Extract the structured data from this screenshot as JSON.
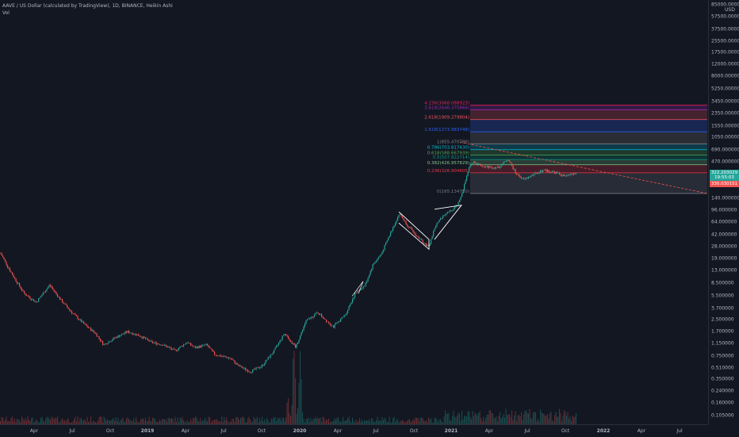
{
  "legend": {
    "symbol": "AAVE / US Dollar (calculated by TradingView), 1D, BINANCE, Heikin Ashi",
    "volume": "Vol"
  },
  "price_axis": {
    "currency": "USD",
    "ticks": [
      {
        "label": "85000.000000",
        "v": 85000
      },
      {
        "label": "57500.000000",
        "v": 57500
      },
      {
        "label": "37500.000000",
        "v": 37500
      },
      {
        "label": "25500.000000",
        "v": 25500
      },
      {
        "label": "17500.000000",
        "v": 17500
      },
      {
        "label": "12000.000000",
        "v": 12000
      },
      {
        "label": "8000.000000",
        "v": 8000
      },
      {
        "label": "5250.000000",
        "v": 5250
      },
      {
        "label": "3450.000000",
        "v": 3450
      },
      {
        "label": "2350.000000",
        "v": 2350
      },
      {
        "label": "1550.000000",
        "v": 1550
      },
      {
        "label": "1050.000000",
        "v": 1050
      },
      {
        "label": "690.000000",
        "v": 690
      },
      {
        "label": "470.000000",
        "v": 470
      },
      {
        "label": "140.000000",
        "v": 140
      },
      {
        "label": "96.000000",
        "v": 96
      },
      {
        "label": "64.000000",
        "v": 64
      },
      {
        "label": "42.000000",
        "v": 42
      },
      {
        "label": "28.000000",
        "v": 28
      },
      {
        "label": "19.000000",
        "v": 19
      },
      {
        "label": "13.000000",
        "v": 13
      },
      {
        "label": "8.500000",
        "v": 8.5
      },
      {
        "label": "5.500000",
        "v": 5.5
      },
      {
        "label": "3.700000",
        "v": 3.7
      },
      {
        "label": "2.500000",
        "v": 2.5
      },
      {
        "label": "1.700000",
        "v": 1.7
      },
      {
        "label": "1.150000",
        "v": 1.15
      },
      {
        "label": "0.750000",
        "v": 0.75
      },
      {
        "label": "0.510000",
        "v": 0.51
      },
      {
        "label": "0.350000",
        "v": 0.35
      },
      {
        "label": "0.240000",
        "v": 0.24
      },
      {
        "label": "0.160000",
        "v": 0.16
      },
      {
        "label": "0.105000",
        "v": 0.105
      }
    ],
    "current_price": "322.203029",
    "countdown": "19:55:03",
    "marker_price": "330.030151",
    "colors": {
      "current": "#26a69a",
      "marker": "#ef5350"
    }
  },
  "time_axis": {
    "ticks": [
      {
        "label": "Apr",
        "x": 43
      },
      {
        "label": "Jul",
        "x": 91
      },
      {
        "label": "Oct",
        "x": 139
      },
      {
        "label": "2019",
        "x": 186,
        "bold": true
      },
      {
        "label": "Apr",
        "x": 234
      },
      {
        "label": "Jul",
        "x": 282
      },
      {
        "label": "Oct",
        "x": 330
      },
      {
        "label": "2020",
        "x": 378,
        "bold": true
      },
      {
        "label": "Apr",
        "x": 426
      },
      {
        "label": "Jul",
        "x": 474
      },
      {
        "label": "Oct",
        "x": 522
      },
      {
        "label": "2021",
        "x": 569,
        "bold": true
      },
      {
        "label": "Apr",
        "x": 617
      },
      {
        "label": "Jul",
        "x": 665
      },
      {
        "label": "Oct",
        "x": 713
      },
      {
        "label": "2022",
        "x": 761,
        "bold": true
      },
      {
        "label": "Apr",
        "x": 809
      },
      {
        "label": "Jul",
        "x": 857
      }
    ]
  },
  "chart_data": {
    "type": "candlestick",
    "scale": "log",
    "price_range": [
      0.095,
      100000
    ],
    "up_color": "#26a69a",
    "down_color": "#ef5350",
    "key_points": [
      {
        "x": 0,
        "p": 23
      },
      {
        "x": 10,
        "p": 14
      },
      {
        "x": 20,
        "p": 9
      },
      {
        "x": 30,
        "p": 6
      },
      {
        "x": 45,
        "p": 4.5
      },
      {
        "x": 62,
        "p": 8
      },
      {
        "x": 75,
        "p": 5
      },
      {
        "x": 90,
        "p": 3.2
      },
      {
        "x": 105,
        "p": 2.2
      },
      {
        "x": 120,
        "p": 1.6
      },
      {
        "x": 130,
        "p": 1.1
      },
      {
        "x": 145,
        "p": 1.4
      },
      {
        "x": 160,
        "p": 1.7
      },
      {
        "x": 175,
        "p": 1.5
      },
      {
        "x": 190,
        "p": 1.2
      },
      {
        "x": 205,
        "p": 1.1
      },
      {
        "x": 220,
        "p": 0.9
      },
      {
        "x": 235,
        "p": 1.2
      },
      {
        "x": 245,
        "p": 1.0
      },
      {
        "x": 260,
        "p": 1.1
      },
      {
        "x": 270,
        "p": 0.8
      },
      {
        "x": 290,
        "p": 0.7
      },
      {
        "x": 300,
        "p": 0.55
      },
      {
        "x": 315,
        "p": 0.45
      },
      {
        "x": 330,
        "p": 0.55
      },
      {
        "x": 345,
        "p": 0.9
      },
      {
        "x": 358,
        "p": 1.6
      },
      {
        "x": 365,
        "p": 1.3
      },
      {
        "x": 372,
        "p": 1.0
      },
      {
        "x": 385,
        "p": 2.4
      },
      {
        "x": 400,
        "p": 3.2
      },
      {
        "x": 412,
        "p": 2.4
      },
      {
        "x": 420,
        "p": 2.0
      },
      {
        "x": 435,
        "p": 3.0
      },
      {
        "x": 447,
        "p": 6.0
      },
      {
        "x": 460,
        "p": 8.0
      },
      {
        "x": 470,
        "p": 16
      },
      {
        "x": 480,
        "p": 22
      },
      {
        "x": 492,
        "p": 45
      },
      {
        "x": 503,
        "p": 85
      },
      {
        "x": 512,
        "p": 60
      },
      {
        "x": 525,
        "p": 40
      },
      {
        "x": 540,
        "p": 28
      },
      {
        "x": 548,
        "p": 55
      },
      {
        "x": 558,
        "p": 80
      },
      {
        "x": 570,
        "p": 95
      },
      {
        "x": 578,
        "p": 120
      },
      {
        "x": 585,
        "p": 220
      },
      {
        "x": 592,
        "p": 420
      },
      {
        "x": 597,
        "p": 470
      },
      {
        "x": 610,
        "p": 400
      },
      {
        "x": 628,
        "p": 390
      },
      {
        "x": 640,
        "p": 520
      },
      {
        "x": 650,
        "p": 320
      },
      {
        "x": 660,
        "p": 260
      },
      {
        "x": 670,
        "p": 300
      },
      {
        "x": 685,
        "p": 360
      },
      {
        "x": 700,
        "p": 330
      },
      {
        "x": 712,
        "p": 290
      },
      {
        "x": 725,
        "p": 322
      }
    ],
    "fibonacci": [
      {
        "label": "4.236(3068.088923)",
        "price": 3068,
        "color": "#e91e63"
      },
      {
        "label": "3.618(2646.375866)",
        "price": 2646,
        "color": "#9c27b0"
      },
      {
        "label": "2.618(1909.279804)",
        "price": 1909,
        "color": "#f7525f"
      },
      {
        "label": "1.618(1273.983748)",
        "price": 1274,
        "color": "#2962ff"
      },
      {
        "label": "1(855.470786)",
        "price": 855,
        "color": "#808080"
      },
      {
        "label": "0.786(703.817430)",
        "price": 704,
        "color": "#00bcd4"
      },
      {
        "label": "0.618(588.667939)",
        "price": 589,
        "color": "#4caf50"
      },
      {
        "label": "0.5(507.822714)",
        "price": 508,
        "color": "#089981"
      },
      {
        "label": "0.382(426.957829)",
        "price": 427,
        "color": "#81c784"
      },
      {
        "label": "0.236(326.904605)",
        "price": 327,
        "color": "#f23645"
      },
      {
        "label": "0(165.134730)",
        "price": 165,
        "color": "#787b86"
      }
    ],
    "annotations": [
      "trendline",
      "falling-wedge",
      "rising-wedge"
    ]
  }
}
